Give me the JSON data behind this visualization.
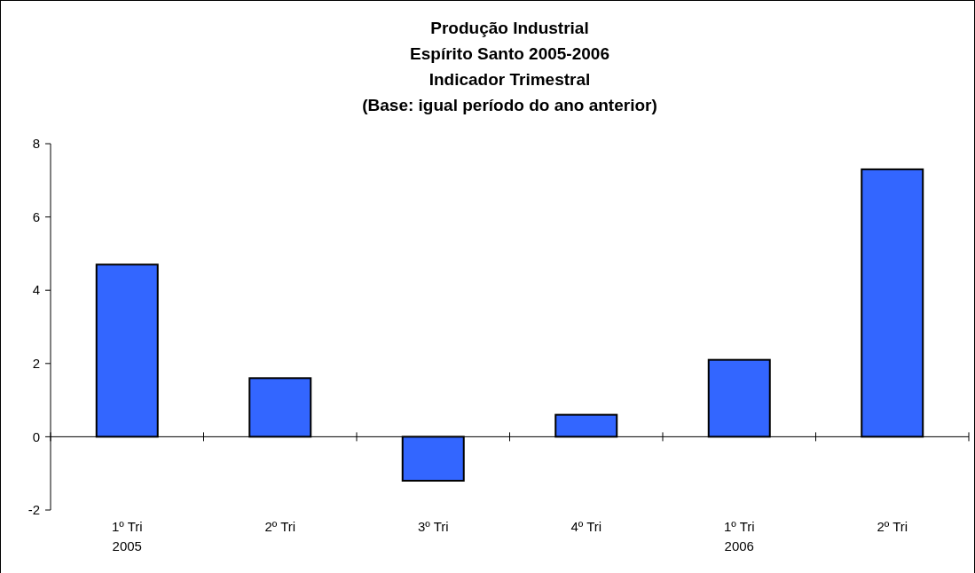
{
  "chart_data": {
    "type": "bar",
    "title": "Produção Industrial\nEspírito Santo 2005-2006\nIndicador Trimestral\n(Base: igual período do ano anterior)",
    "categories": [
      "1º Tri\n2005",
      "2º Tri",
      "3º Tri",
      "4º Tri",
      "1º Tri\n2006",
      "2º Tri"
    ],
    "values": [
      4.7,
      1.6,
      -1.2,
      0.6,
      2.1,
      7.3
    ],
    "color": "#3366ff",
    "ylim": [
      -2,
      8
    ],
    "yticks": [
      -2,
      0,
      2,
      4,
      6,
      8
    ]
  }
}
